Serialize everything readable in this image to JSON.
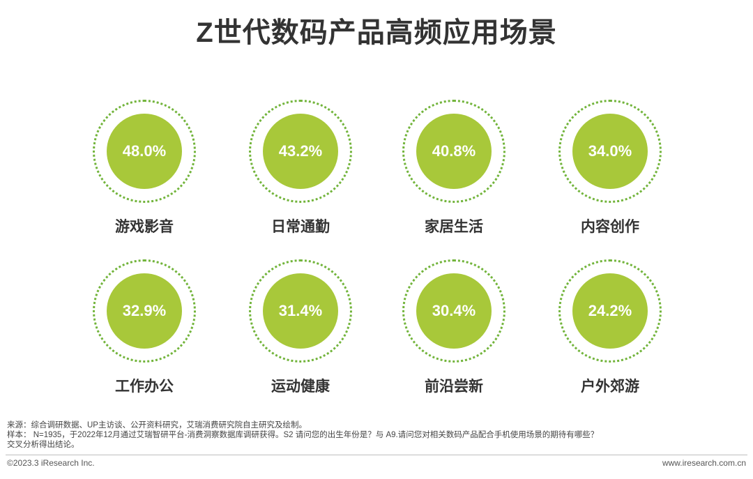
{
  "title": "Z世代数码产品高频应用场景",
  "chart_data": {
    "type": "bubble",
    "unit": "%",
    "categories": [
      "游戏影音",
      "日常通勤",
      "家居生活",
      "内容创作",
      "工作办公",
      "运动健康",
      "前沿尝新",
      "户外郊游"
    ],
    "values": [
      48.0,
      43.2,
      40.8,
      34.0,
      32.9,
      31.4,
      30.4,
      24.2
    ],
    "value_labels": [
      "48.0%",
      "43.2%",
      "40.8%",
      "34.0%",
      "32.9%",
      "31.4%",
      "30.4%",
      "24.2%"
    ]
  },
  "notes": {
    "source": "来源：综合调研数据、UP主访谈、公开资料研究，艾瑞消费研究院自主研究及绘制。",
    "sample": "样本： N=1935，于2022年12月通过艾瑞智研平台-消费洞察数据库调研获得。S2 请问您的出生年份是？与 A9.请问您对相关数码产品配合手机使用场景的期待有哪些？",
    "sample_cont": "交叉分析得出结论。"
  },
  "footer": {
    "copyright": "©2023.3 iResearch Inc.",
    "website": "www.iresearch.com.cn"
  },
  "colors": {
    "disc": "#a8c83a",
    "ring": "#72b43b",
    "text": "#333333"
  }
}
